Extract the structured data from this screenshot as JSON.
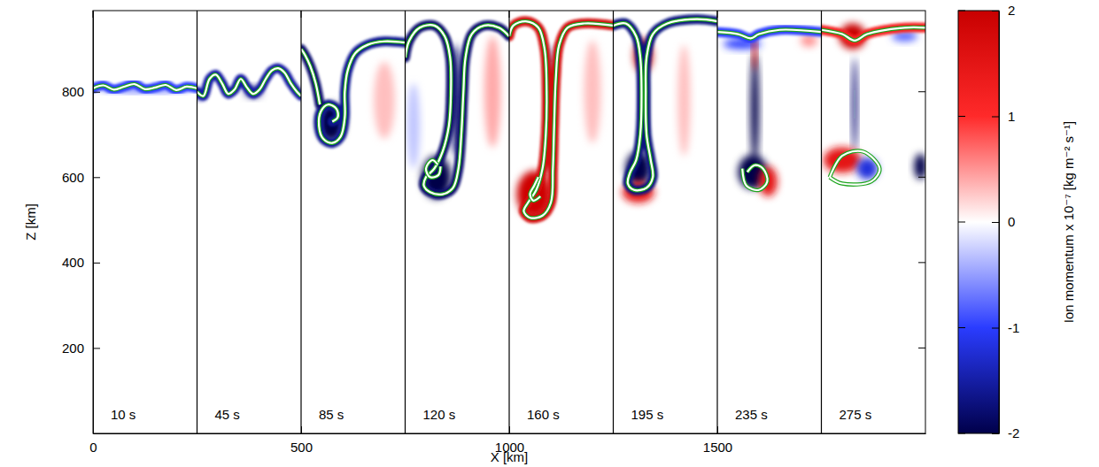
{
  "chart_data": {
    "type": "panels",
    "xlabel": "X [km]",
    "ylabel": "Z [km]",
    "xlim": [
      0,
      2000
    ],
    "ylim": [
      0,
      990
    ],
    "xticks": [
      0,
      500,
      1000,
      1500
    ],
    "yticks": [
      200,
      400,
      600,
      800
    ],
    "colorbar": {
      "label": "Ion momentum x 10⁻⁷ [kg m⁻² s⁻¹]",
      "range": [
        -2,
        2
      ],
      "ticks": [
        -2,
        -1,
        0,
        1,
        2
      ],
      "colors": [
        "#00004a",
        "#2a3cff",
        "#ffffff",
        "#ff2a2a",
        "#c80000"
      ]
    },
    "panels": [
      {
        "label": "10 s",
        "x_range": [
          0,
          250
        ],
        "contours": [
          {
            "x": [
              0,
              25,
              50,
              75,
              100,
              125,
              150,
              175,
              200,
              225,
              250
            ],
            "z": [
              808,
              815,
              805,
              812,
              818,
              806,
              810,
              816,
              804,
              812,
              808
            ],
            "value": -1
          }
        ],
        "patches": [
          {
            "x": 125,
            "z": 805,
            "rx": 110,
            "rz": 6,
            "value": -0.8
          }
        ]
      },
      {
        "label": "45 s",
        "x_range": [
          250,
          500
        ],
        "contours": [
          {
            "x": [
              250,
              265,
              280,
              295,
              310,
              325,
              340,
              355,
              370,
              385,
              400,
              415,
              430,
              445,
              460,
              475,
              490,
              500
            ],
            "z": [
              800,
              790,
              830,
              840,
              820,
              795,
              805,
              830,
              810,
              795,
              805,
              830,
              850,
              855,
              845,
              820,
              800,
              790
            ],
            "value": -1.5
          }
        ],
        "patches": [
          {
            "x": 385,
            "z": 800,
            "rx": 20,
            "rz": 12,
            "value": -1.8
          },
          {
            "x": 255,
            "z": 795,
            "rx": 10,
            "rz": 12,
            "value": -1.5
          }
        ]
      },
      {
        "label": "85 s",
        "x_range": [
          500,
          750
        ],
        "contours": [
          {
            "x": [
              750,
              700,
              660,
              630,
              612,
              605,
              605,
              595,
              575,
              553,
              543,
              548,
              565,
              585,
              588,
              575
            ],
            "z": [
              915,
              918,
              910,
              890,
              850,
              800,
              740,
              695,
              680,
              690,
              720,
              755,
              770,
              760,
              740,
              730
            ],
            "value": -1.6
          },
          {
            "x": [
              500,
              510,
              522,
              535,
              545
            ],
            "z": [
              900,
              885,
              860,
              820,
              770
            ],
            "value": -1.8
          }
        ],
        "patches": [
          {
            "x": 572,
            "z": 728,
            "rx": 32,
            "rz": 45,
            "value": -2
          },
          {
            "x": 700,
            "z": 780,
            "rx": 25,
            "rz": 90,
            "value": 0.3
          }
        ]
      },
      {
        "label": "120 s",
        "x_range": [
          750,
          1000
        ],
        "contours": [
          {
            "x": [
              750,
              760,
              785,
              820,
              845,
              858,
              860,
              855,
              840,
              820,
              800,
              795,
              810,
              840,
              865,
              878,
              885,
              890,
              895,
              910,
              940,
              975,
              1000
            ],
            "z": [
              880,
              920,
              950,
              955,
              930,
              880,
              800,
              720,
              660,
              620,
              600,
              580,
              565,
              560,
              575,
              620,
              700,
              800,
              880,
              935,
              955,
              950,
              930
            ],
            "value": -1.8
          },
          {
            "x": [
              835,
              830,
              810,
              800,
              815,
              828
            ],
            "z": [
              625,
              605,
              600,
              620,
              640,
              630
            ],
            "value": null
          }
        ],
        "patches": [
          {
            "x": 825,
            "z": 600,
            "rx": 35,
            "rz": 50,
            "value": -2
          },
          {
            "x": 872,
            "z": 780,
            "rx": 12,
            "rz": 130,
            "value": -1.8
          },
          {
            "x": 960,
            "z": 800,
            "rx": 20,
            "rz": 130,
            "value": 0.4
          },
          {
            "x": 770,
            "z": 720,
            "rx": 15,
            "rz": 100,
            "value": -0.3
          }
        ]
      },
      {
        "label": "160 s",
        "x_range": [
          1000,
          1250
        ],
        "contours": [
          {
            "x": [
              1000,
              1010,
              1040,
              1070,
              1085,
              1090,
              1088,
              1080,
              1065,
              1045,
              1035,
              1050,
              1080,
              1100,
              1105,
              1108,
              1112,
              1120,
              1140,
              1180,
              1250
            ],
            "z": [
              930,
              955,
              965,
              950,
              900,
              800,
              700,
              620,
              570,
              540,
              520,
              505,
              510,
              540,
              620,
              720,
              830,
              910,
              950,
              960,
              955
            ],
            "value": 1.8
          },
          {
            "x": [
              1070,
              1060,
              1050,
              1058,
              1075
            ],
            "z": [
              600,
              580,
              560,
              545,
              555
            ],
            "value": null
          }
        ],
        "patches": [
          {
            "x": 1060,
            "z": 560,
            "rx": 42,
            "rz": 55,
            "value": 1.9
          },
          {
            "x": 1097,
            "z": 760,
            "rx": 8,
            "rz": 150,
            "value": -1.5
          },
          {
            "x": 1200,
            "z": 800,
            "rx": 20,
            "rz": 120,
            "value": 0.3
          }
        ]
      },
      {
        "label": "195 s",
        "x_range": [
          1250,
          1500
        ],
        "contours": [
          {
            "x": [
              1250,
              1280,
              1305,
              1315,
              1318,
              1315,
              1305,
              1290,
              1285,
              1300,
              1330,
              1345,
              1340,
              1330,
              1328,
              1330,
              1345,
              1380,
              1450,
              1500
            ],
            "z": [
              955,
              960,
              930,
              880,
              800,
              700,
              640,
              610,
              585,
              570,
              575,
              600,
              640,
              700,
              800,
              880,
              935,
              960,
              970,
              965
            ],
            "value": -1.7
          }
        ],
        "patches": [
          {
            "x": 1322,
            "z": 885,
            "rx": 22,
            "rz": 40,
            "value": 2
          },
          {
            "x": 1310,
            "z": 620,
            "rx": 30,
            "rz": 40,
            "value": -2
          },
          {
            "x": 1310,
            "z": 565,
            "rx": 38,
            "rz": 25,
            "value": 1.5
          },
          {
            "x": 1323,
            "z": 760,
            "rx": 8,
            "rz": 100,
            "value": -1.8
          },
          {
            "x": 1420,
            "z": 780,
            "rx": 15,
            "rz": 130,
            "value": 0.3
          }
        ]
      },
      {
        "label": "235 s",
        "x_range": [
          1500,
          1750
        ],
        "contours": [
          {
            "x": [
              1500,
              1550,
              1580,
              1600,
              1650,
              1750
            ],
            "z": [
              940,
              935,
              925,
              935,
              945,
              940
            ],
            "value": -1
          },
          {
            "x": [
              1560,
              1570,
              1600,
              1620,
              1610,
              1590,
              1572
            ],
            "z": [
              620,
              580,
              570,
              590,
              620,
              628,
              612
            ],
            "value": null
          }
        ],
        "patches": [
          {
            "x": 1590,
            "z": 760,
            "rx": 10,
            "rz": 130,
            "value": -2
          },
          {
            "x": 1585,
            "z": 612,
            "rx": 35,
            "rz": 40,
            "value": -2
          },
          {
            "x": 1622,
            "z": 590,
            "rx": 22,
            "rz": 35,
            "value": 1.5
          },
          {
            "x": 1560,
            "z": 912,
            "rx": 45,
            "rz": 12,
            "value": -1
          },
          {
            "x": 1720,
            "z": 920,
            "rx": 20,
            "rz": 15,
            "value": 0.5
          },
          {
            "x": 1590,
            "z": 890,
            "rx": 5,
            "rz": 40,
            "value": 2
          }
        ]
      },
      {
        "label": "275 s",
        "x_range": [
          1750,
          2000
        ],
        "contours": [
          {
            "x": [
              1750,
              1800,
              1830,
              1860,
              1950,
              2000
            ],
            "z": [
              945,
              935,
              920,
              935,
              950,
              950
            ],
            "value": 1.2
          },
          {
            "x": [
              1770,
              1800,
              1850,
              1890,
              1870,
              1800,
              1770
            ],
            "z": [
              600,
              650,
              660,
              620,
              590,
              585,
              600
            ],
            "value": null
          }
        ],
        "patches": [
          {
            "x": 1825,
            "z": 930,
            "rx": 32,
            "rz": 30,
            "value": 2
          },
          {
            "x": 1830,
            "z": 770,
            "rx": 6,
            "rz": 110,
            "value": -1.8
          },
          {
            "x": 1800,
            "z": 640,
            "rx": 45,
            "rz": 30,
            "value": 1.5
          },
          {
            "x": 1860,
            "z": 620,
            "rx": 25,
            "rz": 25,
            "value": -1.2
          },
          {
            "x": 1988,
            "z": 625,
            "rx": 15,
            "rz": 30,
            "value": -2
          },
          {
            "x": 1950,
            "z": 930,
            "rx": 30,
            "rz": 12,
            "value": -0.8
          }
        ]
      }
    ]
  }
}
